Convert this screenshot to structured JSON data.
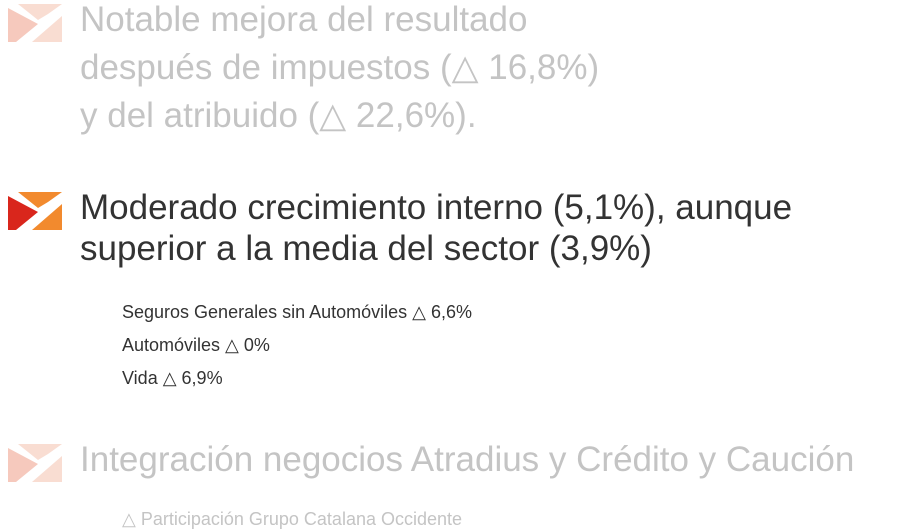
{
  "bullets": [
    {
      "lines": [
        "Notable mejora del resultado",
        "después de impuestos (△ 16,8%)",
        "y del atribuido (△ 22,6%)."
      ],
      "subitems": []
    },
    {
      "lines": [
        "Moderado crecimiento interno (5,1%), aunque",
        "superior a la media del sector (3,9%)"
      ],
      "subitems": [
        "Seguros Generales sin Automóviles △ 6,6%",
        "Automóviles △ 0%",
        "Vida △ 6,9%"
      ]
    },
    {
      "lines": [
        "Integración negocios Atradius y Crédito y Caución"
      ],
      "subitems": [
        "△ Participación Grupo Catalana Occidente"
      ]
    }
  ]
}
